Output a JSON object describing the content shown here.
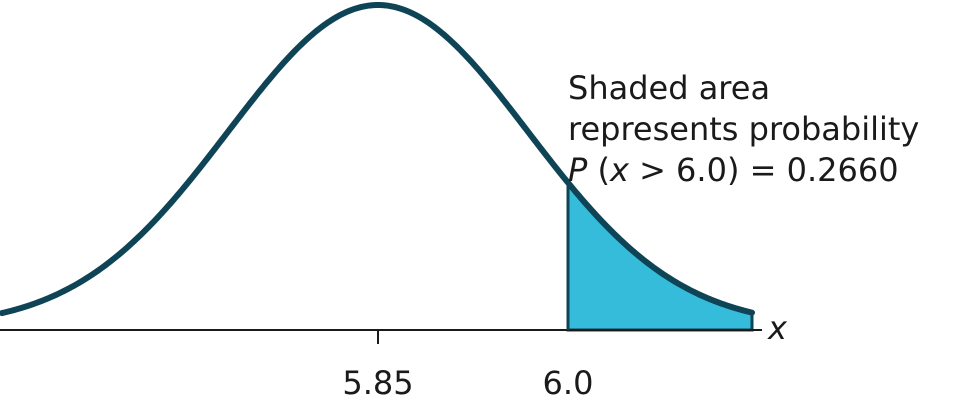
{
  "diagram": {
    "type": "normal-distribution",
    "mean": 5.85,
    "threshold": 6.0,
    "shaded_region": "right-tail",
    "axis_variable": "x",
    "tick_labels": [
      "5.85",
      "6.0"
    ],
    "annotation": {
      "line1": "Shaded area",
      "line2": "represents probability",
      "line3_p": "P",
      "line3_open": " (",
      "line3_x": "x",
      "line3_rest": " > 6.0) = 0.2660"
    },
    "colors": {
      "curve": "#0e4456",
      "shade": "#35bcda",
      "axis": "#1a1a1a"
    }
  }
}
